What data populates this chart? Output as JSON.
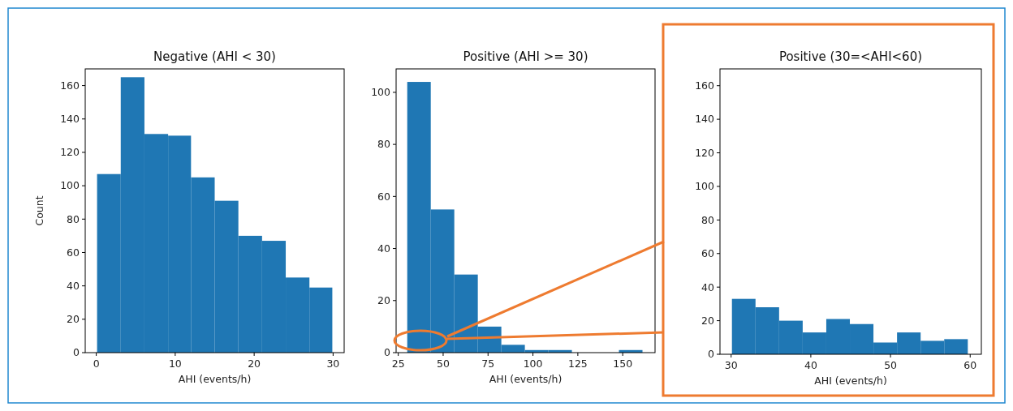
{
  "chart_data": [
    {
      "type": "histogram",
      "title": "Negative (AHI < 30)",
      "xlabel": "AHI (events/h)",
      "ylabel": "Count",
      "color": "#1f77b4",
      "bins": [
        0.1,
        3.1,
        6.1,
        9.1,
        12.0,
        15.0,
        18.0,
        21.0,
        24.0,
        27.0,
        29.9
      ],
      "values": [
        107,
        165,
        131,
        130,
        105,
        91,
        70,
        67,
        45,
        39
      ],
      "xlim": [
        -1.4,
        31.4
      ],
      "xticks": [
        0,
        10,
        20,
        30
      ],
      "ylim": [
        0,
        170
      ],
      "yticks": [
        0,
        20,
        40,
        60,
        80,
        100,
        120,
        140,
        160
      ]
    },
    {
      "type": "histogram",
      "title": "Positive (AHI >= 30)",
      "xlabel": "AHI (events/h)",
      "color": "#1f77b4",
      "bins": [
        30,
        43.1,
        56.2,
        69.3,
        82.4,
        95.5,
        108.6,
        121.7,
        134.8,
        147.9,
        161
      ],
      "values": [
        104,
        55,
        30,
        10,
        3,
        1,
        1,
        0,
        0,
        1
      ],
      "xlim": [
        23.8,
        168
      ],
      "xticks": [
        25,
        50,
        75,
        100,
        125,
        150
      ],
      "ylim": [
        0,
        109
      ],
      "yticks": [
        0,
        20,
        40,
        60,
        80,
        100
      ]
    },
    {
      "type": "histogram",
      "title": "Positive (30=<AHI<60)",
      "xlabel": "AHI (events/h)",
      "color": "#1f77b4",
      "bins": [
        30.1,
        33.06,
        36.02,
        38.98,
        41.94,
        44.9,
        47.86,
        50.82,
        53.78,
        56.74,
        59.7
      ],
      "values": [
        33,
        28,
        20,
        13,
        21,
        18,
        7,
        13,
        8,
        9
      ],
      "xlim": [
        28.6,
        61.4
      ],
      "xticks": [
        30,
        40,
        50,
        60
      ],
      "ylim": [
        0,
        170
      ],
      "yticks": [
        0,
        20,
        40,
        60,
        80,
        100,
        120,
        140,
        160
      ]
    }
  ]
}
